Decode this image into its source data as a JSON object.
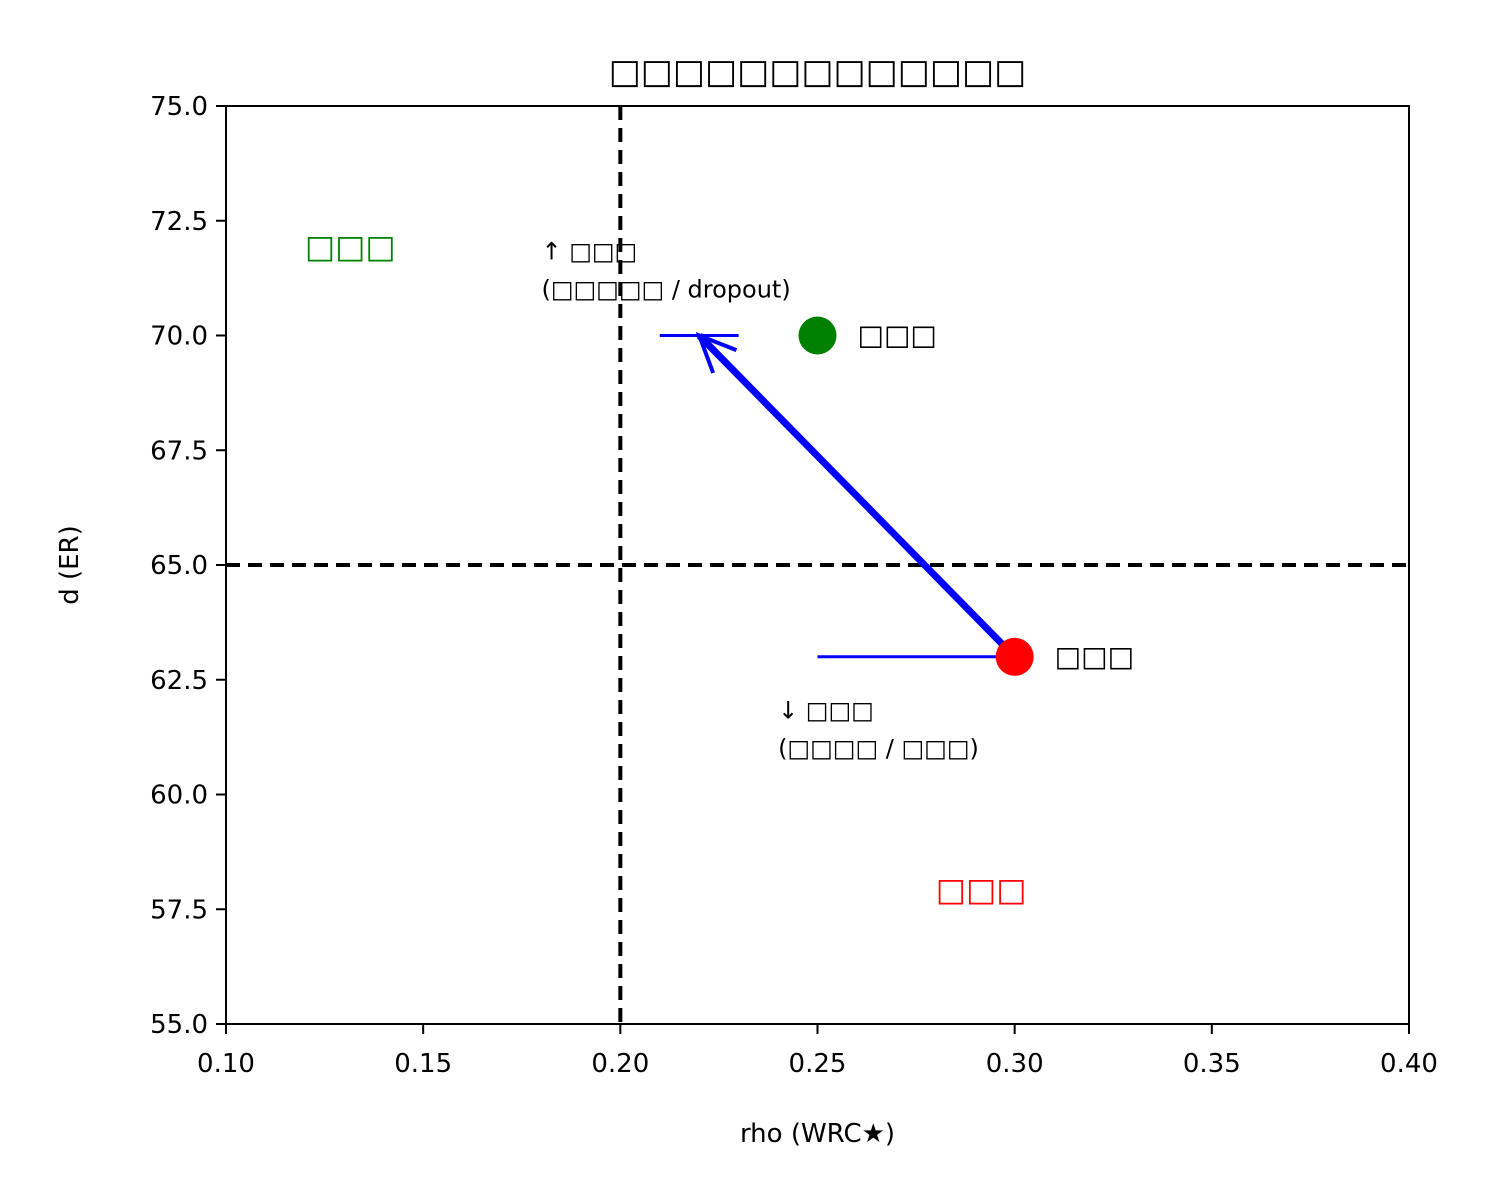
{
  "chart_data": {
    "type": "scatter",
    "title": "□□□□□□□□□□□□□",
    "xlabel": "rho (WRC★)",
    "ylabel": "d (ER)",
    "xlim": [
      0.1,
      0.4
    ],
    "ylim": [
      55.0,
      75.0
    ],
    "xticks": [
      "0.10",
      "0.15",
      "0.20",
      "0.25",
      "0.30",
      "0.35",
      "0.40"
    ],
    "yticks": [
      "55.0",
      "57.5",
      "60.0",
      "62.5",
      "65.0",
      "67.5",
      "70.0",
      "72.5",
      "75.0"
    ],
    "grid": false,
    "reference_lines": [
      {
        "orientation": "vertical",
        "x": 0.2,
        "style": "dashed",
        "color": "#000000"
      },
      {
        "orientation": "horizontal",
        "y": 65.0,
        "style": "dashed",
        "color": "#000000"
      }
    ],
    "points": [
      {
        "x": 0.25,
        "y": 70.0,
        "color": "#008000",
        "label": "□□□"
      },
      {
        "x": 0.3,
        "y": 63.0,
        "color": "#ff0000",
        "label": "□□□"
      }
    ],
    "arrows": [
      {
        "from": [
          0.3,
          63.0
        ],
        "to": [
          0.22,
          70.0
        ],
        "color": "#0000ff"
      }
    ],
    "horizontal_segments": [
      {
        "x": [
          0.21,
          0.23
        ],
        "y": 70.0,
        "color": "#0000ff"
      },
      {
        "x": [
          0.25,
          0.3
        ],
        "y": 63.0,
        "color": "#0000ff"
      }
    ],
    "region_labels": [
      {
        "text": "□□□",
        "x": 0.12,
        "y": 72.0,
        "color": "#008000"
      },
      {
        "text": "□□□",
        "x": 0.28,
        "y": 58.0,
        "color": "#ff0000"
      }
    ],
    "annotations": [
      {
        "lines": [
          "↑ □□□",
          "(□□□□□ / dropout)"
        ],
        "x": 0.18,
        "y": 71.0
      },
      {
        "lines": [
          "↓ □□□",
          "(□□□□ / □□□)"
        ],
        "x": 0.24,
        "y": 61.0
      }
    ]
  }
}
